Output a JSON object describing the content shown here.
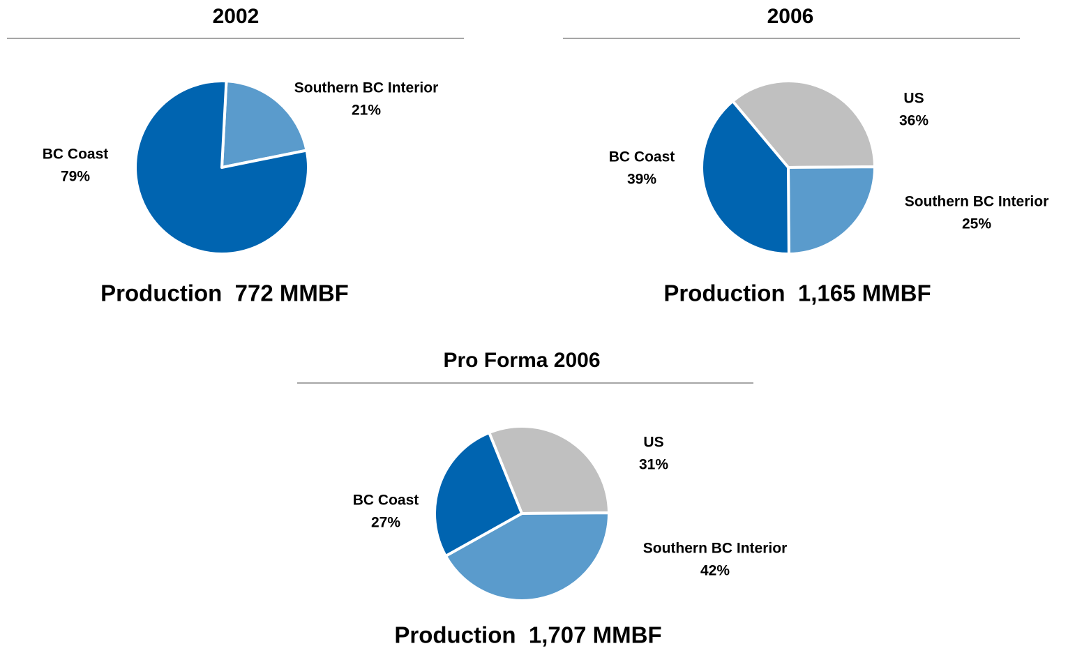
{
  "chart_data": [
    {
      "type": "pie",
      "title": "2002",
      "subtitle": "Production  772 MMBF",
      "categories": [
        "Southern BC Interior",
        "BC Coast"
      ],
      "values": [
        21,
        79
      ],
      "value_labels": [
        "21%",
        "79%"
      ],
      "colors": [
        "#5a9bcc",
        "#0064b0"
      ]
    },
    {
      "type": "pie",
      "title": "2006",
      "subtitle": "Production  1,165 MMBF",
      "categories": [
        "US",
        "Southern BC Interior",
        "BC Coast"
      ],
      "values": [
        36,
        25,
        39
      ],
      "value_labels": [
        "36%",
        "25%",
        "39%"
      ],
      "colors": [
        "#c0c0c0",
        "#5a9bcc",
        "#0064b0"
      ]
    },
    {
      "type": "pie",
      "title": "Pro Forma 2006",
      "subtitle": "Production  1,707 MMBF",
      "categories": [
        "US",
        "Southern BC Interior",
        "BC Coast"
      ],
      "values": [
        31,
        42,
        27
      ],
      "value_labels": [
        "31%",
        "42%",
        "27%"
      ],
      "colors": [
        "#c0c0c0",
        "#5a9bcc",
        "#0064b0"
      ]
    }
  ]
}
